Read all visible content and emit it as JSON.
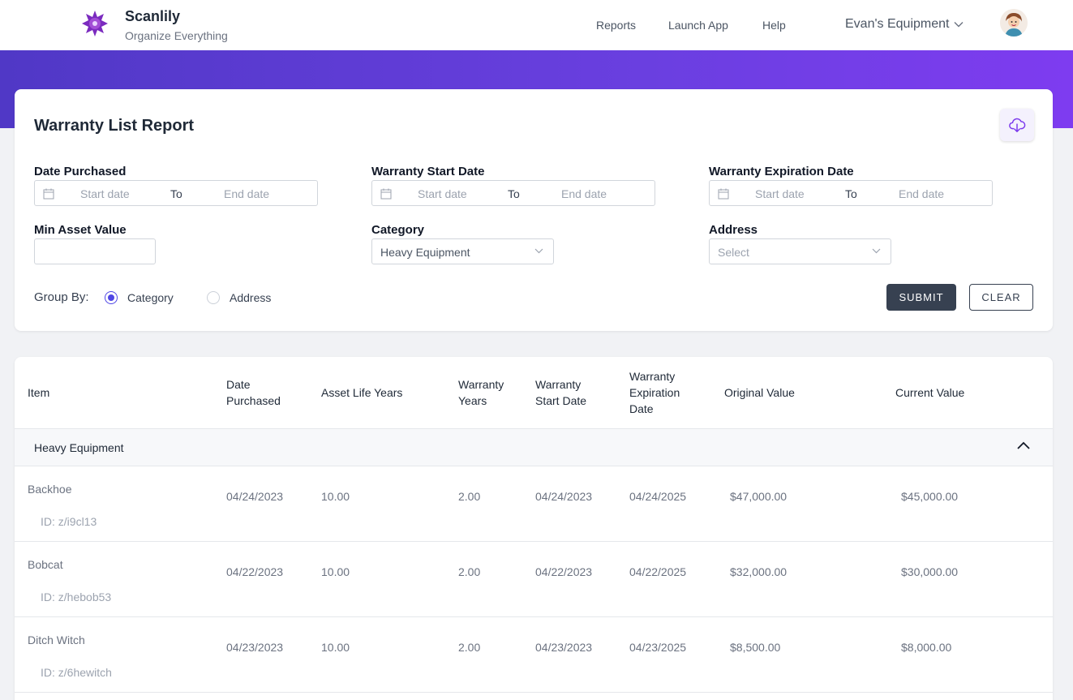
{
  "header": {
    "brand_name": "Scanlily",
    "brand_tagline": "Organize Everything",
    "nav": [
      {
        "label": "Reports"
      },
      {
        "label": "Launch App"
      },
      {
        "label": "Help"
      }
    ],
    "account_label": "Evan's Equipment"
  },
  "report": {
    "title": "Warranty List Report",
    "filters": {
      "date_purchased": {
        "label": "Date Purchased",
        "start_placeholder": "Start date",
        "to": "To",
        "end_placeholder": "End date"
      },
      "warranty_start": {
        "label": "Warranty Start Date",
        "start_placeholder": "Start date",
        "to": "To",
        "end_placeholder": "End date"
      },
      "warranty_expiration": {
        "label": "Warranty Expiration Date",
        "start_placeholder": "Start date",
        "to": "To",
        "end_placeholder": "End date"
      },
      "min_asset_value": {
        "label": "Min Asset Value",
        "value": ""
      },
      "category": {
        "label": "Category",
        "value": "Heavy Equipment"
      },
      "address": {
        "label": "Address",
        "placeholder": "Select"
      }
    },
    "group_by": {
      "label": "Group By:",
      "options": [
        {
          "label": "Category",
          "selected": true
        },
        {
          "label": "Address",
          "selected": false
        }
      ]
    },
    "submit_label": "SUBMIT",
    "clear_label": "CLEAR"
  },
  "table": {
    "columns": [
      {
        "l1": "Item",
        "l2": "",
        "l3": ""
      },
      {
        "l1": "Date",
        "l2": "Purchased",
        "l3": ""
      },
      {
        "l1": "Asset Life Years",
        "l2": "",
        "l3": ""
      },
      {
        "l1": "Warranty",
        "l2": "Years",
        "l3": ""
      },
      {
        "l1": "Warranty",
        "l2": "Start Date",
        "l3": ""
      },
      {
        "l1": "Warranty",
        "l2": "Expiration",
        "l3": "Date"
      },
      {
        "l1": "Original Value",
        "l2": "",
        "l3": ""
      },
      {
        "l1": "Current Value",
        "l2": "",
        "l3": ""
      }
    ],
    "group": "Heavy Equipment",
    "rows": [
      {
        "item": "Backhoe",
        "id": "ID: z/i9cl13",
        "purchased": "04/24/2023",
        "life": "10.00",
        "warranty_years": "2.00",
        "start": "04/24/2023",
        "expiration": "04/24/2025",
        "original": "$47,000.00",
        "current": "$45,000.00"
      },
      {
        "item": "Bobcat",
        "id": "ID: z/hebob53",
        "purchased": "04/22/2023",
        "life": "10.00",
        "warranty_years": "2.00",
        "start": "04/22/2023",
        "expiration": "04/22/2025",
        "original": "$32,000.00",
        "current": "$30,000.00"
      },
      {
        "item": "Ditch Witch",
        "id": "ID: z/6hewitch",
        "purchased": "04/23/2023",
        "life": "10.00",
        "warranty_years": "2.00",
        "start": "04/23/2023",
        "expiration": "04/23/2025",
        "original": "$8,500.00",
        "current": "$8,000.00"
      }
    ]
  },
  "colors": {
    "accent": "#4f46e5",
    "banner_start": "#5038c6",
    "banner_end": "#7e3cf0",
    "button_dark": "#374151"
  }
}
